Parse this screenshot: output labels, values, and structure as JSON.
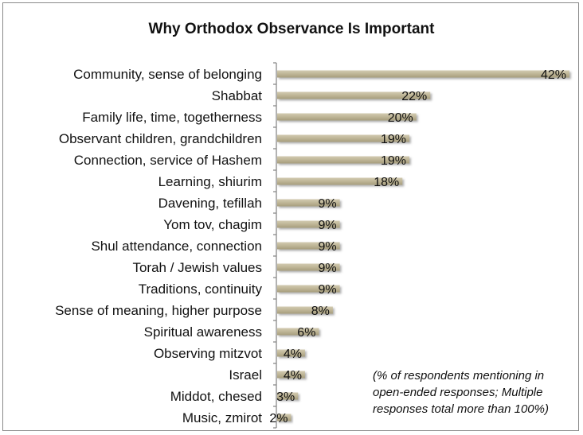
{
  "chart_data": {
    "type": "bar",
    "orientation": "horizontal",
    "title": "Why Orthodox Observance Is Important",
    "categories": [
      "Community, sense of belonging",
      "Shabbat",
      "Family life, time, togetherness",
      "Observant children, grandchildren",
      "Connection, service of Hashem",
      "Learning, shiurim",
      "Davening, tefillah",
      "Yom tov, chagim",
      "Shul attendance, connection",
      "Torah / Jewish values",
      "Traditions, continuity",
      "Sense of meaning, higher purpose",
      "Spiritual awareness",
      "Observing mitzvot",
      "Israel",
      "Middot, chesed",
      "Music, zmirot"
    ],
    "values": [
      42,
      22,
      20,
      19,
      19,
      18,
      9,
      9,
      9,
      9,
      9,
      8,
      6,
      4,
      4,
      3,
      2
    ],
    "value_labels": [
      "42%",
      "22%",
      "20%",
      "19%",
      "19%",
      "18%",
      "9%",
      "9%",
      "9%",
      "9%",
      "9%",
      "8%",
      "6%",
      "4%",
      "4%",
      "3%",
      "2%"
    ],
    "unit": "%",
    "xlim": [
      0,
      42
    ],
    "bar_color": "#beb596",
    "annotation": [
      "(% of respondents mentioning in",
      "open-ended responses; Multiple",
      "responses total more than 100%)"
    ]
  }
}
